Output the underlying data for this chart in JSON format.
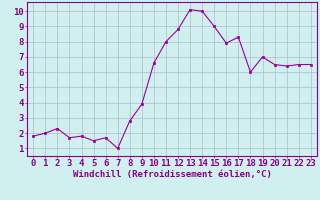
{
  "x": [
    0,
    1,
    2,
    3,
    4,
    5,
    6,
    7,
    8,
    9,
    10,
    11,
    12,
    13,
    14,
    15,
    16,
    17,
    18,
    19,
    20,
    21,
    22,
    23
  ],
  "y": [
    1.8,
    2.0,
    2.3,
    1.7,
    1.8,
    1.5,
    1.7,
    1.0,
    2.8,
    3.9,
    6.6,
    8.0,
    8.8,
    10.1,
    10.0,
    9.0,
    7.9,
    8.3,
    6.0,
    7.0,
    6.5,
    6.4,
    6.5,
    6.5
  ],
  "line_color": "#990099",
  "marker": "s",
  "marker_size": 2,
  "bg_color": "#d0f0f0",
  "grid_color": "#b0b8cc",
  "xlabel": "Windchill (Refroidissement éolien,°C)",
  "xlabel_fontsize": 6.5,
  "xtick_labels": [
    "0",
    "1",
    "2",
    "3",
    "4",
    "5",
    "6",
    "7",
    "8",
    "9",
    "10",
    "11",
    "12",
    "13",
    "14",
    "15",
    "16",
    "17",
    "18",
    "19",
    "20",
    "21",
    "22",
    "23"
  ],
  "ytick_labels": [
    "1",
    "2",
    "3",
    "4",
    "5",
    "6",
    "7",
    "8",
    "9",
    "10"
  ],
  "ylim": [
    0.5,
    10.6
  ],
  "xlim": [
    -0.5,
    23.5
  ],
  "axis_color": "#880088",
  "tick_fontsize": 6.5,
  "xlabel_bold": true
}
